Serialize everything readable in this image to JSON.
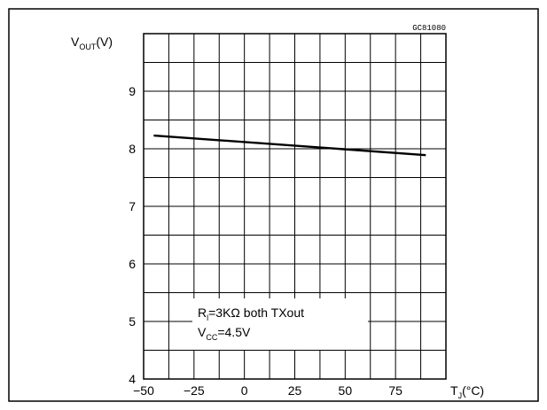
{
  "chart_data": {
    "type": "line",
    "figure_code": "GC81080",
    "ylabel": {
      "main": "V",
      "sub": "OUT",
      "unit": "(V)"
    },
    "xlabel": {
      "main": "T",
      "sub": "J",
      "unit": "(°C)"
    },
    "xlim": [
      -50,
      100
    ],
    "ylim": [
      4,
      10
    ],
    "x_ticks": [
      -50,
      -25,
      0,
      25,
      50,
      75
    ],
    "y_ticks": [
      4,
      5,
      6,
      7,
      8,
      9
    ],
    "x_minor_step": 12.5,
    "y_minor_step": 0.5,
    "grid": true,
    "series": [
      {
        "x": [
          -45,
          90
        ],
        "y": [
          8.23,
          7.89
        ]
      }
    ],
    "annotation": {
      "line1": {
        "main": "R",
        "sub": "l",
        "rest": "=3KΩ  both  TXout"
      },
      "line2": {
        "main": "V",
        "sub": "CC",
        "rest": "=4.5V"
      }
    }
  }
}
